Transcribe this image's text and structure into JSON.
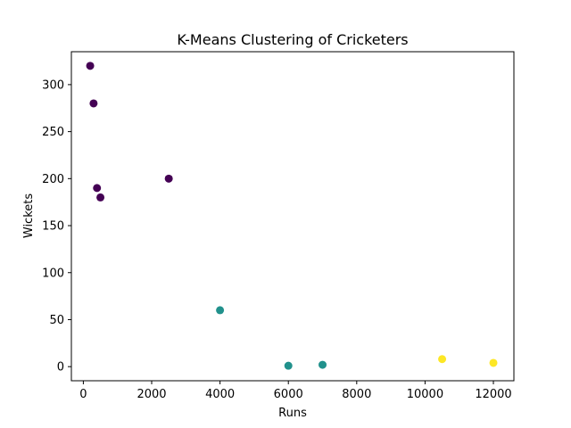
{
  "chart_data": {
    "type": "scatter",
    "title": "K-Means Clustering of Cricketers",
    "xlabel": "Runs",
    "ylabel": "Wickets",
    "xlim": [
      -350,
      12600
    ],
    "ylim": [
      -15,
      335
    ],
    "xticks": [
      0,
      2000,
      4000,
      6000,
      8000,
      10000,
      12000
    ],
    "yticks": [
      0,
      50,
      100,
      150,
      200,
      250,
      300
    ],
    "grid": false,
    "cluster_colors": [
      "#440154",
      "#21918c",
      "#fde725"
    ],
    "points": [
      {
        "x": 200,
        "y": 320,
        "cluster": 0
      },
      {
        "x": 300,
        "y": 280,
        "cluster": 0
      },
      {
        "x": 400,
        "y": 190,
        "cluster": 0
      },
      {
        "x": 500,
        "y": 180,
        "cluster": 0
      },
      {
        "x": 2500,
        "y": 200,
        "cluster": 0
      },
      {
        "x": 4000,
        "y": 60,
        "cluster": 1
      },
      {
        "x": 6000,
        "y": 1,
        "cluster": 1
      },
      {
        "x": 7000,
        "y": 2,
        "cluster": 1
      },
      {
        "x": 10500,
        "y": 8,
        "cluster": 2
      },
      {
        "x": 12000,
        "y": 4,
        "cluster": 2
      }
    ]
  }
}
